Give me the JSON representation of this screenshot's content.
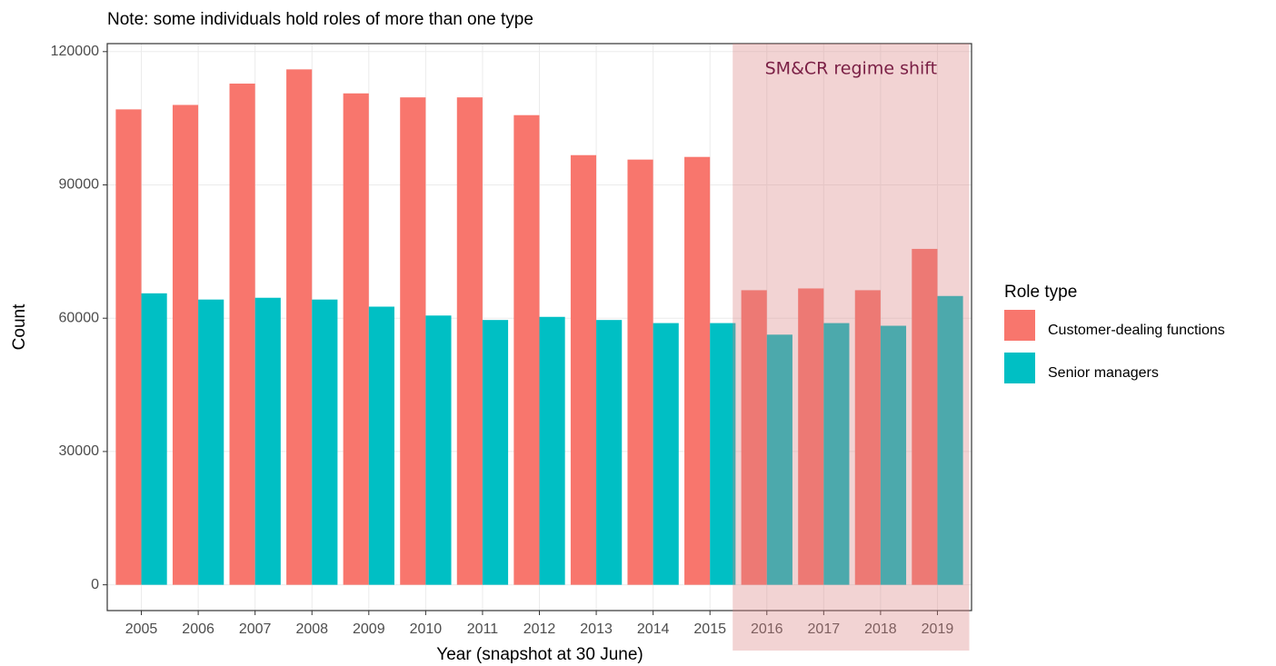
{
  "chart_data": {
    "type": "bar",
    "title": "Note: some individuals hold roles of more than one type",
    "x_label": "Year (snapshot at 30 June)",
    "y_label": "Count",
    "categories": [
      "2005",
      "2006",
      "2007",
      "2008",
      "2009",
      "2010",
      "2011",
      "2012",
      "2013",
      "2014",
      "2015",
      "2016",
      "2017",
      "2018",
      "2019"
    ],
    "series": [
      {
        "name": "Customer-dealing functions",
        "color": "#F8766D",
        "values": [
          107000,
          108000,
          112800,
          116000,
          110600,
          109700,
          109700,
          105700,
          96700,
          95700,
          96300,
          66300,
          66700,
          66300,
          75600
        ]
      },
      {
        "name": "Senior managers",
        "color": "#00BFC4",
        "values": [
          65600,
          64200,
          64600,
          64200,
          62600,
          60600,
          59600,
          60300,
          59600,
          58900,
          58900,
          56300,
          58900,
          58300,
          65000
        ]
      }
    ],
    "ylim": [
      -5800,
      121800
    ],
    "yticks": [
      0,
      30000,
      60000,
      90000,
      120000
    ],
    "grid": true,
    "legend": {
      "title": "Role type",
      "position": "right"
    },
    "annotation": {
      "text": "SM&CR regime shift",
      "start": "2016",
      "end": "2019",
      "color": "#d98080"
    }
  }
}
